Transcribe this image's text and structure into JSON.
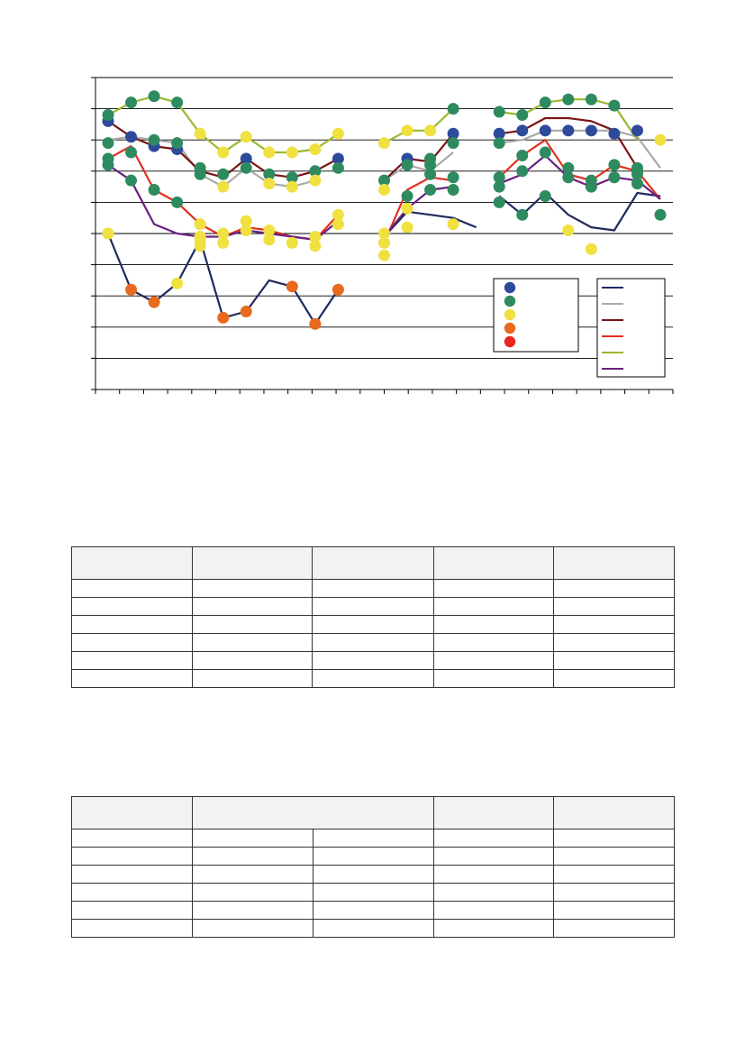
{
  "chart_data": {
    "type": "line",
    "title": "",
    "xlabel": "",
    "ylabel": "",
    "x": [
      0,
      1,
      2,
      3,
      4,
      5,
      6,
      7,
      8,
      9,
      10,
      11,
      12,
      13,
      14,
      15,
      16,
      17,
      18,
      19,
      20,
      21,
      22,
      23,
      24
    ],
    "ylim": [
      0,
      10
    ],
    "grid": true,
    "legend": "inside bottom-right, two boxes (markers and lines)",
    "lines": [
      {
        "color": "#1f2a5e",
        "values": [
          5,
          3.2,
          2.8,
          3.4,
          4.8,
          2.3,
          2.5,
          3.5,
          3.3,
          2.1,
          3.2
        ]
      },
      {
        "color": "#1f2a5e",
        "values": [
          4.9,
          5.7,
          5.6,
          5.5,
          5.2
        ]
      },
      {
        "color": "#1f2a5e",
        "values": [
          6.2,
          5.6,
          6.3,
          5.6,
          5.2,
          5.1,
          6.3,
          6.2
        ]
      },
      {
        "color": "#aaaaaa",
        "values": [
          8.0,
          8.1,
          8.0,
          7.9,
          6.9,
          6.5,
          7.1,
          6.6,
          6.5,
          6.7
        ]
      },
      {
        "color": "#aaaaaa",
        "values": [
          6.7,
          7.2,
          7.0,
          7.6
        ]
      },
      {
        "color": "#aaaaaa",
        "values": [
          7.9,
          8.0,
          8.3,
          8.3,
          8.3,
          8.3,
          8.1,
          7.1
        ]
      },
      {
        "color": "#7a1414",
        "values": [
          8.6,
          8.1,
          7.8,
          7.7,
          7.0,
          6.8,
          7.4,
          6.9,
          6.8,
          7.0,
          7.4
        ]
      },
      {
        "color": "#7a1414",
        "values": [
          6.7,
          7.4,
          7.3,
          8.2
        ]
      },
      {
        "color": "#7a1414",
        "values": [
          8.2,
          8.3,
          8.7,
          8.7,
          8.6,
          8.3,
          7.1
        ]
      },
      {
        "color": "#e03020",
        "values": [
          7.4,
          7.8,
          6.4,
          6.0,
          5.3,
          4.9,
          5.2,
          5.1,
          4.9,
          4.8,
          5.6
        ]
      },
      {
        "color": "#e03020",
        "values": [
          4.7,
          6.4,
          6.8,
          6.7
        ]
      },
      {
        "color": "#e03020",
        "values": [
          6.8,
          7.5,
          8.0,
          6.9,
          6.7,
          7.2,
          7.0,
          6.1
        ]
      },
      {
        "color": "#9ab830",
        "values": [
          8.8,
          9.2,
          9.4,
          9.2,
          8.2,
          7.6,
          8.1,
          7.6,
          7.6,
          7.7,
          8.2
        ]
      },
      {
        "color": "#9ab830",
        "values": [
          7.9,
          8.3,
          8.3,
          9.0
        ]
      },
      {
        "color": "#9ab830",
        "values": [
          8.9,
          8.8,
          9.2,
          9.3,
          9.3,
          9.1,
          8.0
        ]
      },
      {
        "color": "#6a2080",
        "values": [
          7.2,
          6.7,
          5.3,
          5.0,
          4.9,
          4.9,
          5.1,
          5.0,
          4.9,
          4.8,
          5.4
        ]
      },
      {
        "color": "#6a2080",
        "values": [
          4.9,
          5.8,
          6.4,
          6.5
        ]
      },
      {
        "color": "#6a2080",
        "values": [
          6.6,
          6.9,
          7.5,
          6.8,
          6.5,
          6.8,
          6.7,
          6.1
        ]
      }
    ],
    "markers": [
      {
        "x": 0,
        "y": 8.6,
        "c": "#2e4a9a"
      },
      {
        "x": 1,
        "y": 8.1,
        "c": "#2e4a9a"
      },
      {
        "x": 2,
        "y": 7.8,
        "c": "#2e4a9a"
      },
      {
        "x": 3,
        "y": 7.7,
        "c": "#2e4a9a"
      },
      {
        "x": 6,
        "y": 7.4,
        "c": "#2e4a9a"
      },
      {
        "x": 10,
        "y": 7.4,
        "c": "#2e4a9a"
      },
      {
        "x": 13,
        "y": 7.4,
        "c": "#2e4a9a"
      },
      {
        "x": 15,
        "y": 8.2,
        "c": "#2e4a9a"
      },
      {
        "x": 17,
        "y": 8.2,
        "c": "#2e4a9a"
      },
      {
        "x": 18,
        "y": 8.3,
        "c": "#2e4a9a"
      },
      {
        "x": 19,
        "y": 8.3,
        "c": "#2e4a9a"
      },
      {
        "x": 20,
        "y": 8.3,
        "c": "#2e4a9a"
      },
      {
        "x": 21,
        "y": 8.3,
        "c": "#2e4a9a"
      },
      {
        "x": 22,
        "y": 8.2,
        "c": "#2e4a9a"
      },
      {
        "x": 23,
        "y": 8.3,
        "c": "#2e4a9a"
      },
      {
        "x": 0,
        "y": 8.8,
        "c": "#2e8b5f"
      },
      {
        "x": 1,
        "y": 9.2,
        "c": "#2e8b5f"
      },
      {
        "x": 2,
        "y": 9.4,
        "c": "#2e8b5f"
      },
      {
        "x": 3,
        "y": 9.2,
        "c": "#2e8b5f"
      },
      {
        "x": 0,
        "y": 7.9,
        "c": "#2e8b5f"
      },
      {
        "x": 2,
        "y": 8.0,
        "c": "#2e8b5f"
      },
      {
        "x": 3,
        "y": 7.9,
        "c": "#2e8b5f"
      },
      {
        "x": 0,
        "y": 7.4,
        "c": "#2e8b5f"
      },
      {
        "x": 0,
        "y": 7.2,
        "c": "#2e8b5f"
      },
      {
        "x": 1,
        "y": 7.6,
        "c": "#2e8b5f"
      },
      {
        "x": 1,
        "y": 6.7,
        "c": "#2e8b5f"
      },
      {
        "x": 2,
        "y": 6.4,
        "c": "#2e8b5f"
      },
      {
        "x": 3,
        "y": 6.0,
        "c": "#2e8b5f"
      },
      {
        "x": 4,
        "y": 7.1,
        "c": "#2e8b5f"
      },
      {
        "x": 4,
        "y": 6.9,
        "c": "#2e8b5f"
      },
      {
        "x": 5,
        "y": 6.9,
        "c": "#2e8b5f"
      },
      {
        "x": 6,
        "y": 7.1,
        "c": "#2e8b5f"
      },
      {
        "x": 7,
        "y": 6.9,
        "c": "#2e8b5f"
      },
      {
        "x": 8,
        "y": 6.8,
        "c": "#2e8b5f"
      },
      {
        "x": 9,
        "y": 7.0,
        "c": "#2e8b5f"
      },
      {
        "x": 10,
        "y": 7.1,
        "c": "#2e8b5f"
      },
      {
        "x": 12,
        "y": 6.7,
        "c": "#2e8b5f"
      },
      {
        "x": 13,
        "y": 7.2,
        "c": "#2e8b5f"
      },
      {
        "x": 13,
        "y": 6.2,
        "c": "#2e8b5f"
      },
      {
        "x": 14,
        "y": 7.4,
        "c": "#2e8b5f"
      },
      {
        "x": 14,
        "y": 7.2,
        "c": "#2e8b5f"
      },
      {
        "x": 14,
        "y": 6.9,
        "c": "#2e8b5f"
      },
      {
        "x": 14,
        "y": 6.4,
        "c": "#2e8b5f"
      },
      {
        "x": 15,
        "y": 9.0,
        "c": "#2e8b5f"
      },
      {
        "x": 15,
        "y": 7.9,
        "c": "#2e8b5f"
      },
      {
        "x": 15,
        "y": 6.8,
        "c": "#2e8b5f"
      },
      {
        "x": 15,
        "y": 6.4,
        "c": "#2e8b5f"
      },
      {
        "x": 17,
        "y": 8.9,
        "c": "#2e8b5f"
      },
      {
        "x": 17,
        "y": 7.9,
        "c": "#2e8b5f"
      },
      {
        "x": 17,
        "y": 6.8,
        "c": "#2e8b5f"
      },
      {
        "x": 17,
        "y": 6.5,
        "c": "#2e8b5f"
      },
      {
        "x": 17,
        "y": 6.0,
        "c": "#2e8b5f"
      },
      {
        "x": 18,
        "y": 8.8,
        "c": "#2e8b5f"
      },
      {
        "x": 18,
        "y": 7.5,
        "c": "#2e8b5f"
      },
      {
        "x": 18,
        "y": 7.0,
        "c": "#2e8b5f"
      },
      {
        "x": 18,
        "y": 5.6,
        "c": "#2e8b5f"
      },
      {
        "x": 19,
        "y": 9.2,
        "c": "#2e8b5f"
      },
      {
        "x": 19,
        "y": 7.6,
        "c": "#2e8b5f"
      },
      {
        "x": 19,
        "y": 6.2,
        "c": "#2e8b5f"
      },
      {
        "x": 20,
        "y": 9.3,
        "c": "#2e8b5f"
      },
      {
        "x": 20,
        "y": 7.1,
        "c": "#2e8b5f"
      },
      {
        "x": 20,
        "y": 6.8,
        "c": "#2e8b5f"
      },
      {
        "x": 21,
        "y": 9.3,
        "c": "#2e8b5f"
      },
      {
        "x": 21,
        "y": 6.7,
        "c": "#2e8b5f"
      },
      {
        "x": 21,
        "y": 6.5,
        "c": "#2e8b5f"
      },
      {
        "x": 22,
        "y": 9.1,
        "c": "#2e8b5f"
      },
      {
        "x": 22,
        "y": 7.2,
        "c": "#2e8b5f"
      },
      {
        "x": 22,
        "y": 6.8,
        "c": "#2e8b5f"
      },
      {
        "x": 23,
        "y": 7.1,
        "c": "#2e8b5f"
      },
      {
        "x": 23,
        "y": 7.0,
        "c": "#2e8b5f"
      },
      {
        "x": 23,
        "y": 6.9,
        "c": "#2e8b5f"
      },
      {
        "x": 23,
        "y": 6.6,
        "c": "#2e8b5f"
      },
      {
        "x": 24,
        "y": 5.6,
        "c": "#2e8b5f"
      },
      {
        "x": 0,
        "y": 5.0,
        "c": "#f0e040"
      },
      {
        "x": 3,
        "y": 3.4,
        "c": "#f0e040"
      },
      {
        "x": 4,
        "y": 8.2,
        "c": "#f0e040"
      },
      {
        "x": 4,
        "y": 5.3,
        "c": "#f0e040"
      },
      {
        "x": 4,
        "y": 4.9,
        "c": "#f0e040"
      },
      {
        "x": 4,
        "y": 4.8,
        "c": "#f0e040"
      },
      {
        "x": 4,
        "y": 4.6,
        "c": "#f0e040"
      },
      {
        "x": 5,
        "y": 7.6,
        "c": "#f0e040"
      },
      {
        "x": 5,
        "y": 6.5,
        "c": "#f0e040"
      },
      {
        "x": 5,
        "y": 5.0,
        "c": "#f0e040"
      },
      {
        "x": 5,
        "y": 4.7,
        "c": "#f0e040"
      },
      {
        "x": 6,
        "y": 8.1,
        "c": "#f0e040"
      },
      {
        "x": 6,
        "y": 5.4,
        "c": "#f0e040"
      },
      {
        "x": 6,
        "y": 5.1,
        "c": "#f0e040"
      },
      {
        "x": 7,
        "y": 7.6,
        "c": "#f0e040"
      },
      {
        "x": 7,
        "y": 6.6,
        "c": "#f0e040"
      },
      {
        "x": 7,
        "y": 5.1,
        "c": "#f0e040"
      },
      {
        "x": 7,
        "y": 4.8,
        "c": "#f0e040"
      },
      {
        "x": 8,
        "y": 7.6,
        "c": "#f0e040"
      },
      {
        "x": 8,
        "y": 6.5,
        "c": "#f0e040"
      },
      {
        "x": 8,
        "y": 4.7,
        "c": "#f0e040"
      },
      {
        "x": 9,
        "y": 7.7,
        "c": "#f0e040"
      },
      {
        "x": 9,
        "y": 6.7,
        "c": "#f0e040"
      },
      {
        "x": 9,
        "y": 4.9,
        "c": "#f0e040"
      },
      {
        "x": 9,
        "y": 4.6,
        "c": "#f0e040"
      },
      {
        "x": 10,
        "y": 8.2,
        "c": "#f0e040"
      },
      {
        "x": 10,
        "y": 5.6,
        "c": "#f0e040"
      },
      {
        "x": 10,
        "y": 5.3,
        "c": "#f0e040"
      },
      {
        "x": 12,
        "y": 7.9,
        "c": "#f0e040"
      },
      {
        "x": 12,
        "y": 6.4,
        "c": "#f0e040"
      },
      {
        "x": 12,
        "y": 5.0,
        "c": "#f0e040"
      },
      {
        "x": 12,
        "y": 4.7,
        "c": "#f0e040"
      },
      {
        "x": 12,
        "y": 4.3,
        "c": "#f0e040"
      },
      {
        "x": 13,
        "y": 8.3,
        "c": "#f0e040"
      },
      {
        "x": 13,
        "y": 5.8,
        "c": "#f0e040"
      },
      {
        "x": 13,
        "y": 5.2,
        "c": "#f0e040"
      },
      {
        "x": 14,
        "y": 8.3,
        "c": "#f0e040"
      },
      {
        "x": 15,
        "y": 5.3,
        "c": "#f0e040"
      },
      {
        "x": 20,
        "y": 5.1,
        "c": "#f0e040"
      },
      {
        "x": 21,
        "y": 4.5,
        "c": "#f0e040"
      },
      {
        "x": 24,
        "y": 8.0,
        "c": "#f0e040"
      },
      {
        "x": 1,
        "y": 3.2,
        "c": "#e86a1e"
      },
      {
        "x": 2,
        "y": 2.8,
        "c": "#e86a1e"
      },
      {
        "x": 5,
        "y": 2.3,
        "c": "#e86a1e"
      },
      {
        "x": 6,
        "y": 2.5,
        "c": "#e86a1e"
      },
      {
        "x": 8,
        "y": 3.3,
        "c": "#e86a1e"
      },
      {
        "x": 9,
        "y": 2.1,
        "c": "#e86a1e"
      },
      {
        "x": 10,
        "y": 3.2,
        "c": "#e86a1e"
      }
    ],
    "legend_markers": [
      {
        "color": "#2e4a9a",
        "label": ""
      },
      {
        "color": "#2e8b5f",
        "label": ""
      },
      {
        "color": "#f0e040",
        "label": ""
      },
      {
        "color": "#e86a1e",
        "label": ""
      },
      {
        "color": "#e8281e",
        "label": ""
      }
    ],
    "legend_lines": [
      {
        "color": "#1f2a5e",
        "label": ""
      },
      {
        "color": "#aaaaaa",
        "label": ""
      },
      {
        "color": "#7a1414",
        "label": ""
      },
      {
        "color": "#e03020",
        "label": ""
      },
      {
        "color": "#9ab830",
        "label": ""
      },
      {
        "color": "#6a2080",
        "label": ""
      }
    ]
  },
  "tables": [
    {
      "merged_header": false,
      "header": [
        "",
        "",
        "",
        "",
        ""
      ],
      "rows": [
        [
          "",
          "",
          "",
          "",
          ""
        ],
        [
          "",
          "",
          "",
          "",
          ""
        ],
        [
          "",
          "",
          "",
          "",
          ""
        ],
        [
          "",
          "",
          "",
          "",
          ""
        ],
        [
          "",
          "",
          "",
          "",
          ""
        ],
        [
          "",
          "",
          "",
          "",
          ""
        ]
      ]
    },
    {
      "merged_header": true,
      "header": [
        "",
        "",
        "",
        ""
      ],
      "rows": [
        [
          "",
          "",
          "",
          "",
          ""
        ],
        [
          "",
          "",
          "",
          "",
          ""
        ],
        [
          "",
          "",
          "",
          "",
          ""
        ],
        [
          "",
          "",
          "",
          "",
          ""
        ],
        [
          "",
          "",
          "",
          "",
          ""
        ],
        [
          "",
          "",
          "",
          "",
          ""
        ]
      ]
    }
  ]
}
